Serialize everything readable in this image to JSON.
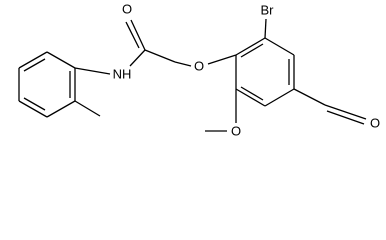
{
  "atoms": [
    {
      "label": "O"
    },
    {
      "label": "NH"
    },
    {
      "label": "O"
    },
    {
      "label": "Br"
    },
    {
      "label": "O"
    },
    {
      "label": "O"
    }
  ]
}
